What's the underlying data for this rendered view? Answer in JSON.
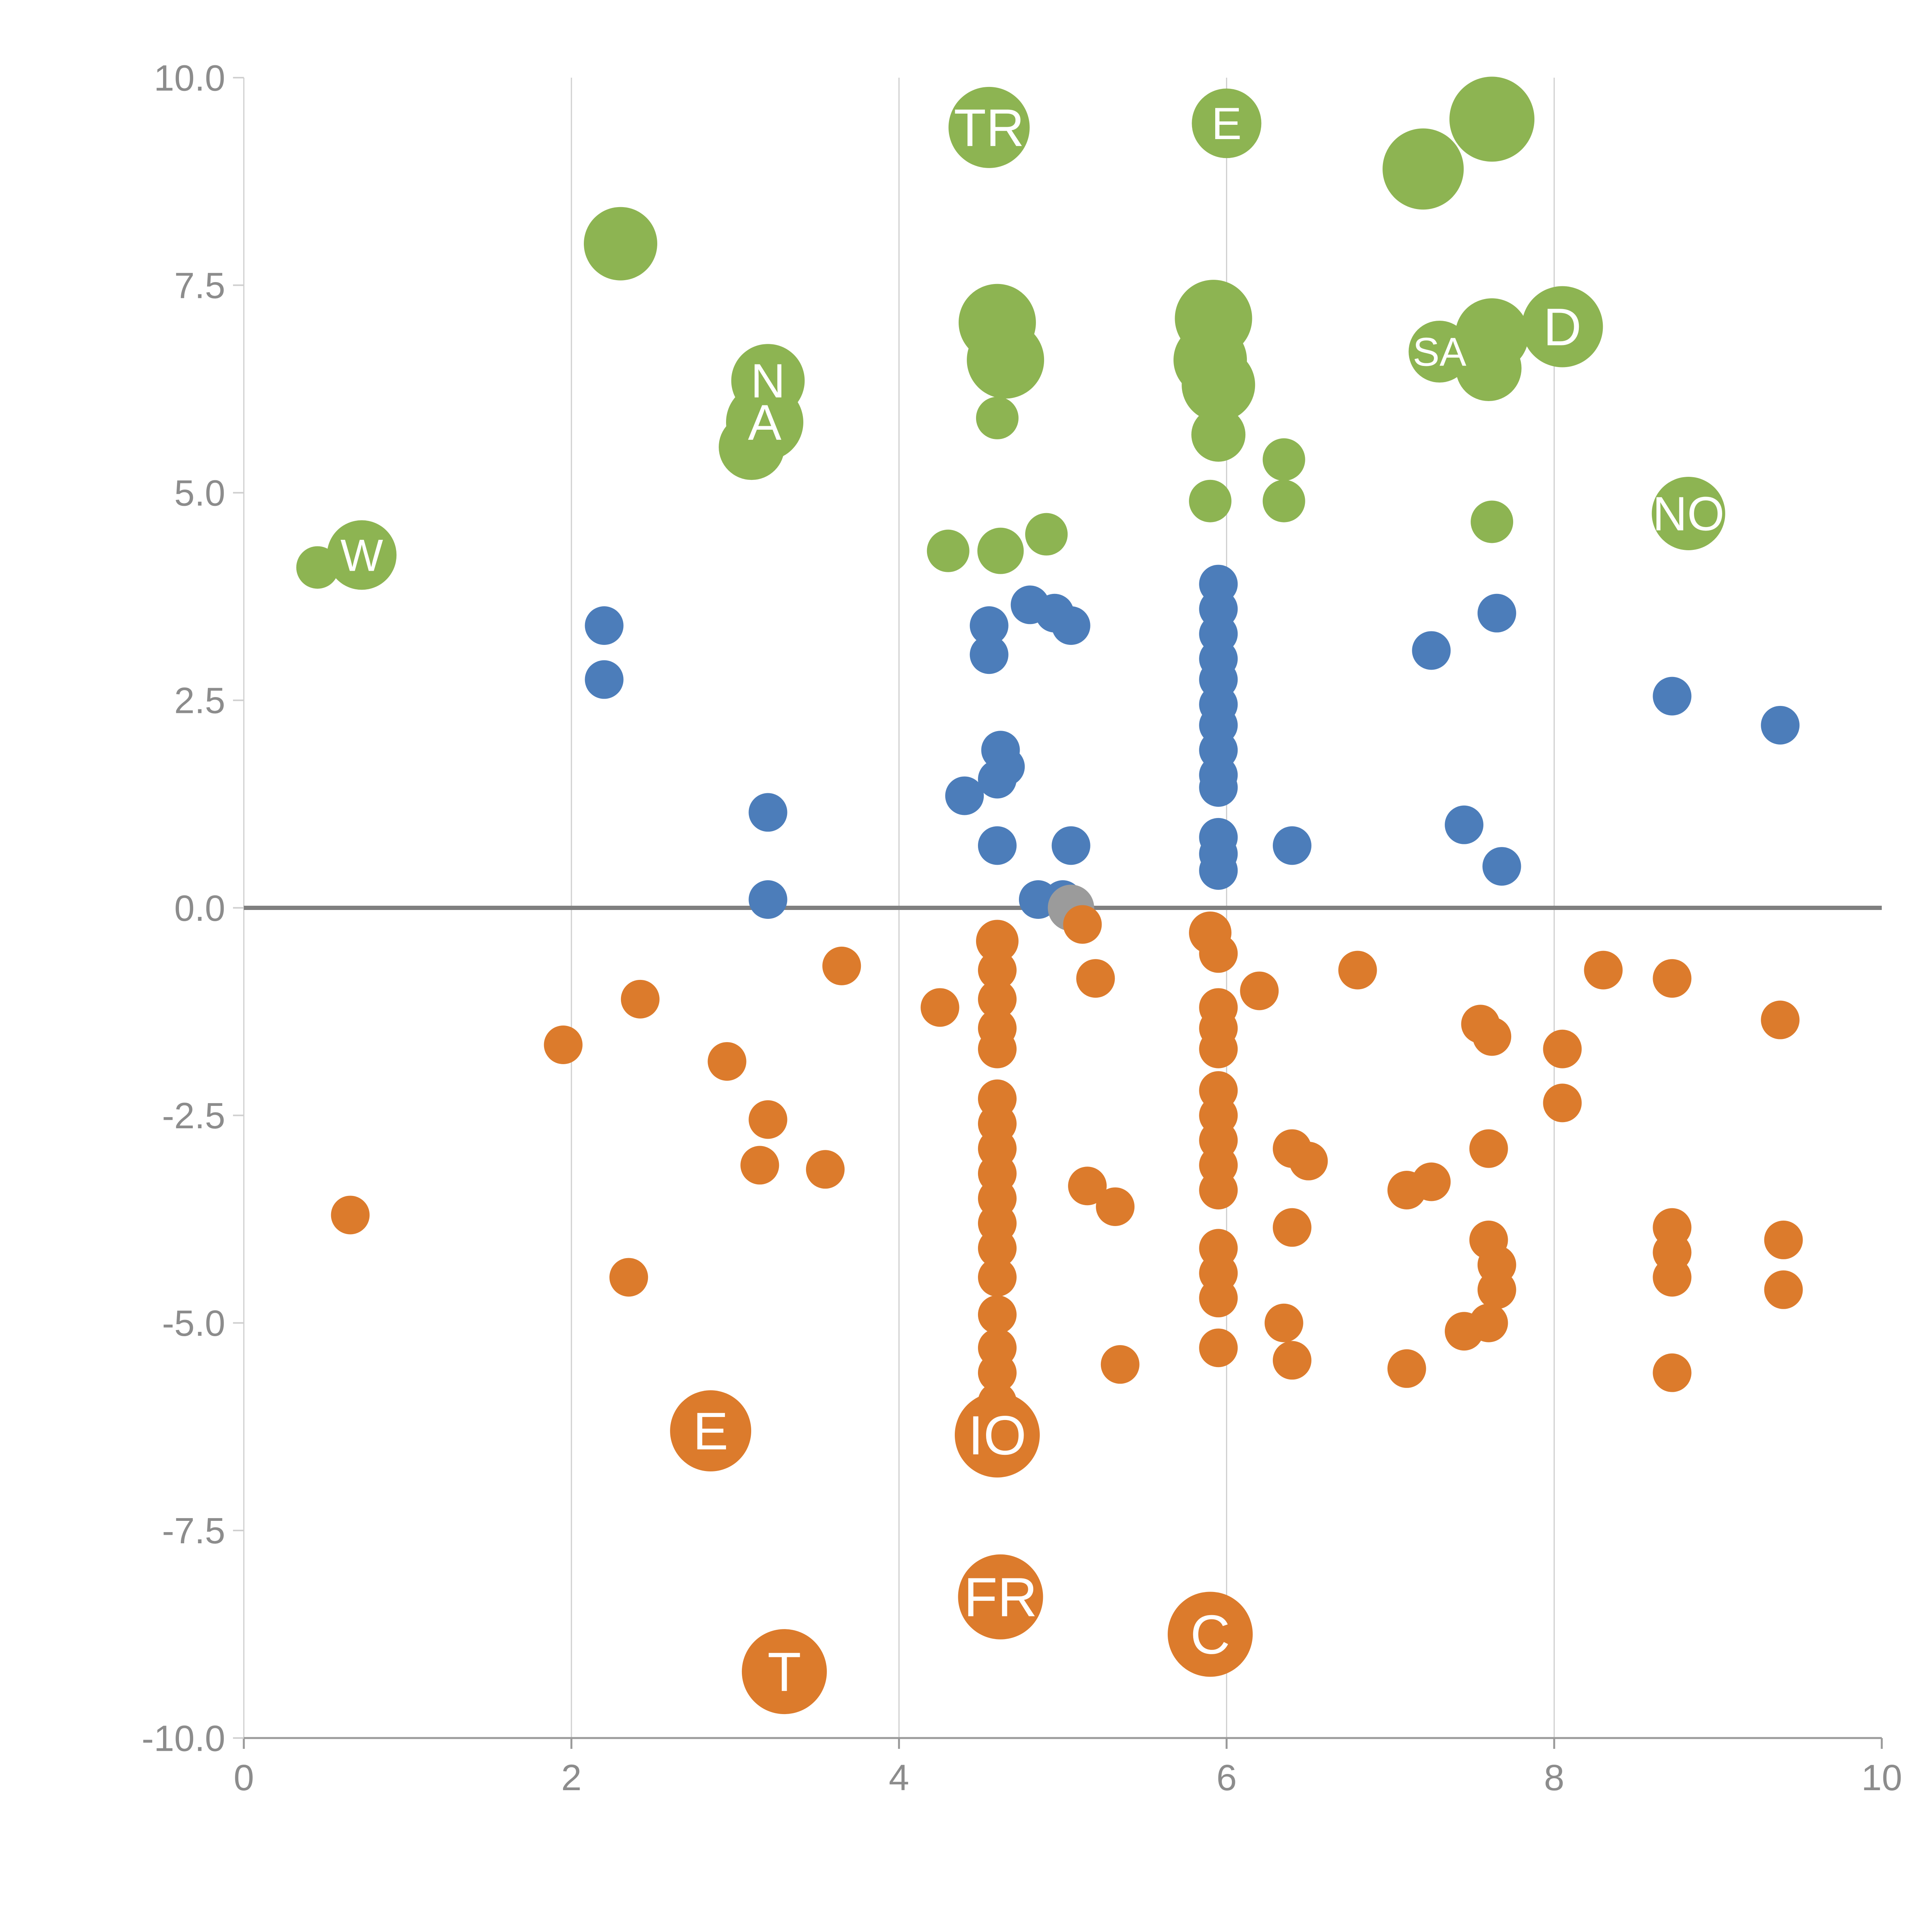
{
  "chart": {
    "background": "#ffffff",
    "tick_color": "#8c8c8c",
    "grid_color": "#cfcfcf",
    "spine_left_color": "#cfcfcf",
    "spine_bottom_color": "#9a9a9a",
    "zero_line_color": "#7f7f7f",
    "label_text_color": "#ffffff"
  },
  "chart_data": {
    "type": "scatter",
    "title": "",
    "xlabel": "",
    "ylabel": "",
    "xlim": [
      0,
      10
    ],
    "ylim": [
      -10,
      10
    ],
    "x_tick_values": [
      0,
      2,
      4,
      6,
      8,
      10
    ],
    "x_tick_labels": [
      "0",
      "2",
      "4",
      "6",
      "8",
      "10"
    ],
    "y_tick_values": [
      -10,
      -7.5,
      -5,
      -2.5,
      0,
      2.5,
      5,
      7.5,
      10
    ],
    "y_tick_labels": [
      "-10.0",
      "-7.5",
      "-5.0",
      "-2.5",
      "0.0",
      "2.5",
      "5.0",
      "7.5",
      "10.0"
    ],
    "grid": "vertical-only",
    "gridline_x_values": [
      2,
      4,
      6,
      8
    ],
    "zero_line": true,
    "legend": "none",
    "point_default_radius": 50,
    "series": [
      {
        "name": "green",
        "color": "#8DB452",
        "points": [
          [
            0.45,
            4.1,
            55
          ],
          [
            0.72,
            4.25,
            90,
            "W"
          ],
          [
            2.3,
            8.0,
            95
          ],
          [
            3.2,
            6.35,
            95,
            "N"
          ],
          [
            3.18,
            5.85,
            100,
            "A"
          ],
          [
            3.1,
            5.55,
            85
          ],
          [
            4.55,
            9.4,
            105,
            "TR"
          ],
          [
            4.6,
            7.05,
            100
          ],
          [
            4.65,
            6.6,
            100
          ],
          [
            4.6,
            5.9,
            55
          ],
          [
            4.3,
            4.3,
            55
          ],
          [
            4.62,
            4.3,
            60
          ],
          [
            4.9,
            4.5,
            55
          ],
          [
            6.0,
            9.45,
            90,
            "E"
          ],
          [
            5.92,
            7.1,
            100
          ],
          [
            5.9,
            6.6,
            95
          ],
          [
            5.95,
            6.3,
            95
          ],
          [
            5.95,
            5.7,
            70
          ],
          [
            5.9,
            4.9,
            55
          ],
          [
            6.35,
            5.4,
            55
          ],
          [
            6.35,
            4.9,
            55
          ],
          [
            7.2,
            8.9,
            105
          ],
          [
            7.62,
            9.5,
            110
          ],
          [
            7.3,
            6.7,
            80,
            "SA"
          ],
          [
            7.62,
            6.9,
            95
          ],
          [
            7.6,
            6.5,
            85
          ],
          [
            8.05,
            7.0,
            105,
            "D"
          ],
          [
            7.62,
            4.65,
            55
          ],
          [
            8.82,
            4.75,
            95,
            "NO"
          ]
        ]
      },
      {
        "name": "blue",
        "color": "#4C7DBA",
        "points": [
          [
            2.2,
            3.4,
            50
          ],
          [
            2.2,
            2.75,
            50
          ],
          [
            3.2,
            1.15,
            50
          ],
          [
            3.2,
            0.1,
            50
          ],
          [
            4.4,
            1.35,
            50
          ],
          [
            4.55,
            3.4,
            50
          ],
          [
            4.55,
            3.05,
            50
          ],
          [
            4.62,
            1.9,
            50
          ],
          [
            4.65,
            1.7,
            50
          ],
          [
            4.6,
            1.55,
            50
          ],
          [
            4.6,
            0.75,
            50
          ],
          [
            4.8,
            3.65,
            50
          ],
          [
            4.95,
            3.55,
            50
          ],
          [
            5.05,
            3.4,
            50
          ],
          [
            4.85,
            0.1,
            50
          ],
          [
            5.0,
            0.1,
            50
          ],
          [
            5.05,
            0.75,
            50
          ],
          [
            5.95,
            3.9,
            50
          ],
          [
            5.95,
            3.6,
            50
          ],
          [
            5.95,
            3.3,
            50
          ],
          [
            5.95,
            3.0,
            50
          ],
          [
            5.95,
            2.75,
            50
          ],
          [
            5.95,
            2.45,
            50
          ],
          [
            5.95,
            2.2,
            50
          ],
          [
            5.95,
            1.9,
            50
          ],
          [
            5.95,
            1.6,
            50
          ],
          [
            5.95,
            1.45,
            50
          ],
          [
            5.95,
            0.85,
            50
          ],
          [
            5.95,
            0.65,
            50
          ],
          [
            5.95,
            0.45,
            50
          ],
          [
            6.4,
            0.75,
            50
          ],
          [
            7.25,
            3.1,
            50
          ],
          [
            7.45,
            1.0,
            50
          ],
          [
            7.65,
            3.55,
            50
          ],
          [
            7.68,
            0.5,
            50
          ],
          [
            8.72,
            2.55,
            50
          ],
          [
            9.38,
            2.2,
            50
          ]
        ]
      },
      {
        "name": "gray",
        "color": "#9b9b9b",
        "points": [
          [
            5.05,
            0.0,
            60
          ]
        ]
      },
      {
        "name": "orange",
        "color": "#DC7B2C",
        "points": [
          [
            0.65,
            -3.7,
            50
          ],
          [
            1.95,
            -1.65,
            50
          ],
          [
            2.42,
            -1.1,
            50
          ],
          [
            2.35,
            -4.45,
            50
          ],
          [
            2.85,
            -6.3,
            105,
            "E"
          ],
          [
            2.95,
            -1.85,
            50
          ],
          [
            3.2,
            -2.55,
            50
          ],
          [
            3.15,
            -3.1,
            50
          ],
          [
            3.3,
            -9.2,
            110,
            "T"
          ],
          [
            3.55,
            -3.15,
            50
          ],
          [
            3.65,
            -0.7,
            50
          ],
          [
            4.25,
            -1.2,
            50
          ],
          [
            4.6,
            -0.4,
            55
          ],
          [
            4.6,
            -0.75,
            50
          ],
          [
            4.6,
            -1.1,
            50
          ],
          [
            4.6,
            -1.45,
            50
          ],
          [
            4.6,
            -1.7,
            50
          ],
          [
            4.6,
            -2.3,
            50
          ],
          [
            4.6,
            -2.6,
            50
          ],
          [
            4.6,
            -2.9,
            50
          ],
          [
            4.6,
            -3.2,
            50
          ],
          [
            4.6,
            -3.5,
            50
          ],
          [
            4.6,
            -3.8,
            50
          ],
          [
            4.6,
            -4.1,
            50
          ],
          [
            4.6,
            -4.45,
            50
          ],
          [
            4.6,
            -4.9,
            50
          ],
          [
            4.6,
            -5.3,
            50
          ],
          [
            4.6,
            -5.6,
            50
          ],
          [
            4.6,
            -5.95,
            50
          ],
          [
            4.6,
            -6.35,
            110,
            "IO"
          ],
          [
            4.62,
            -8.3,
            110,
            "FR"
          ],
          [
            5.12,
            -0.2,
            50
          ],
          [
            5.2,
            -0.85,
            50
          ],
          [
            5.15,
            -3.35,
            50
          ],
          [
            5.32,
            -3.6,
            50
          ],
          [
            5.35,
            -5.5,
            50
          ],
          [
            5.9,
            -0.3,
            55
          ],
          [
            5.95,
            -0.55,
            50
          ],
          [
            5.95,
            -1.2,
            50
          ],
          [
            5.95,
            -1.45,
            50
          ],
          [
            5.95,
            -1.7,
            50
          ],
          [
            5.95,
            -2.2,
            50
          ],
          [
            5.95,
            -2.5,
            50
          ],
          [
            5.95,
            -2.8,
            50
          ],
          [
            5.95,
            -3.1,
            50
          ],
          [
            5.95,
            -3.4,
            50
          ],
          [
            5.95,
            -4.1,
            50
          ],
          [
            5.95,
            -4.4,
            50
          ],
          [
            5.95,
            -4.7,
            50
          ],
          [
            5.95,
            -5.3,
            50
          ],
          [
            5.9,
            -8.75,
            110,
            "C"
          ],
          [
            6.2,
            -1.0,
            50
          ],
          [
            6.4,
            -2.9,
            50
          ],
          [
            6.5,
            -3.05,
            50
          ],
          [
            6.4,
            -3.85,
            50
          ],
          [
            6.35,
            -5.0,
            50
          ],
          [
            6.4,
            -5.45,
            50
          ],
          [
            6.8,
            -0.75,
            50
          ],
          [
            7.1,
            -3.4,
            50
          ],
          [
            7.25,
            -3.3,
            50
          ],
          [
            7.1,
            -5.55,
            50
          ],
          [
            7.45,
            -5.1,
            50
          ],
          [
            7.55,
            -1.4,
            50
          ],
          [
            7.62,
            -1.55,
            50
          ],
          [
            7.6,
            -2.9,
            50
          ],
          [
            7.6,
            -4.0,
            50
          ],
          [
            7.65,
            -4.3,
            50
          ],
          [
            7.65,
            -4.6,
            50
          ],
          [
            7.6,
            -5.0,
            50
          ],
          [
            8.05,
            -1.7,
            50
          ],
          [
            8.05,
            -2.35,
            50
          ],
          [
            8.3,
            -0.75,
            50
          ],
          [
            8.72,
            -0.85,
            50
          ],
          [
            8.72,
            -3.85,
            50
          ],
          [
            8.72,
            -4.15,
            50
          ],
          [
            8.72,
            -4.45,
            50
          ],
          [
            8.72,
            -5.6,
            50
          ],
          [
            9.38,
            -1.35,
            50
          ],
          [
            9.4,
            -4.0,
            50
          ],
          [
            9.4,
            -4.6,
            50
          ]
        ]
      }
    ]
  }
}
